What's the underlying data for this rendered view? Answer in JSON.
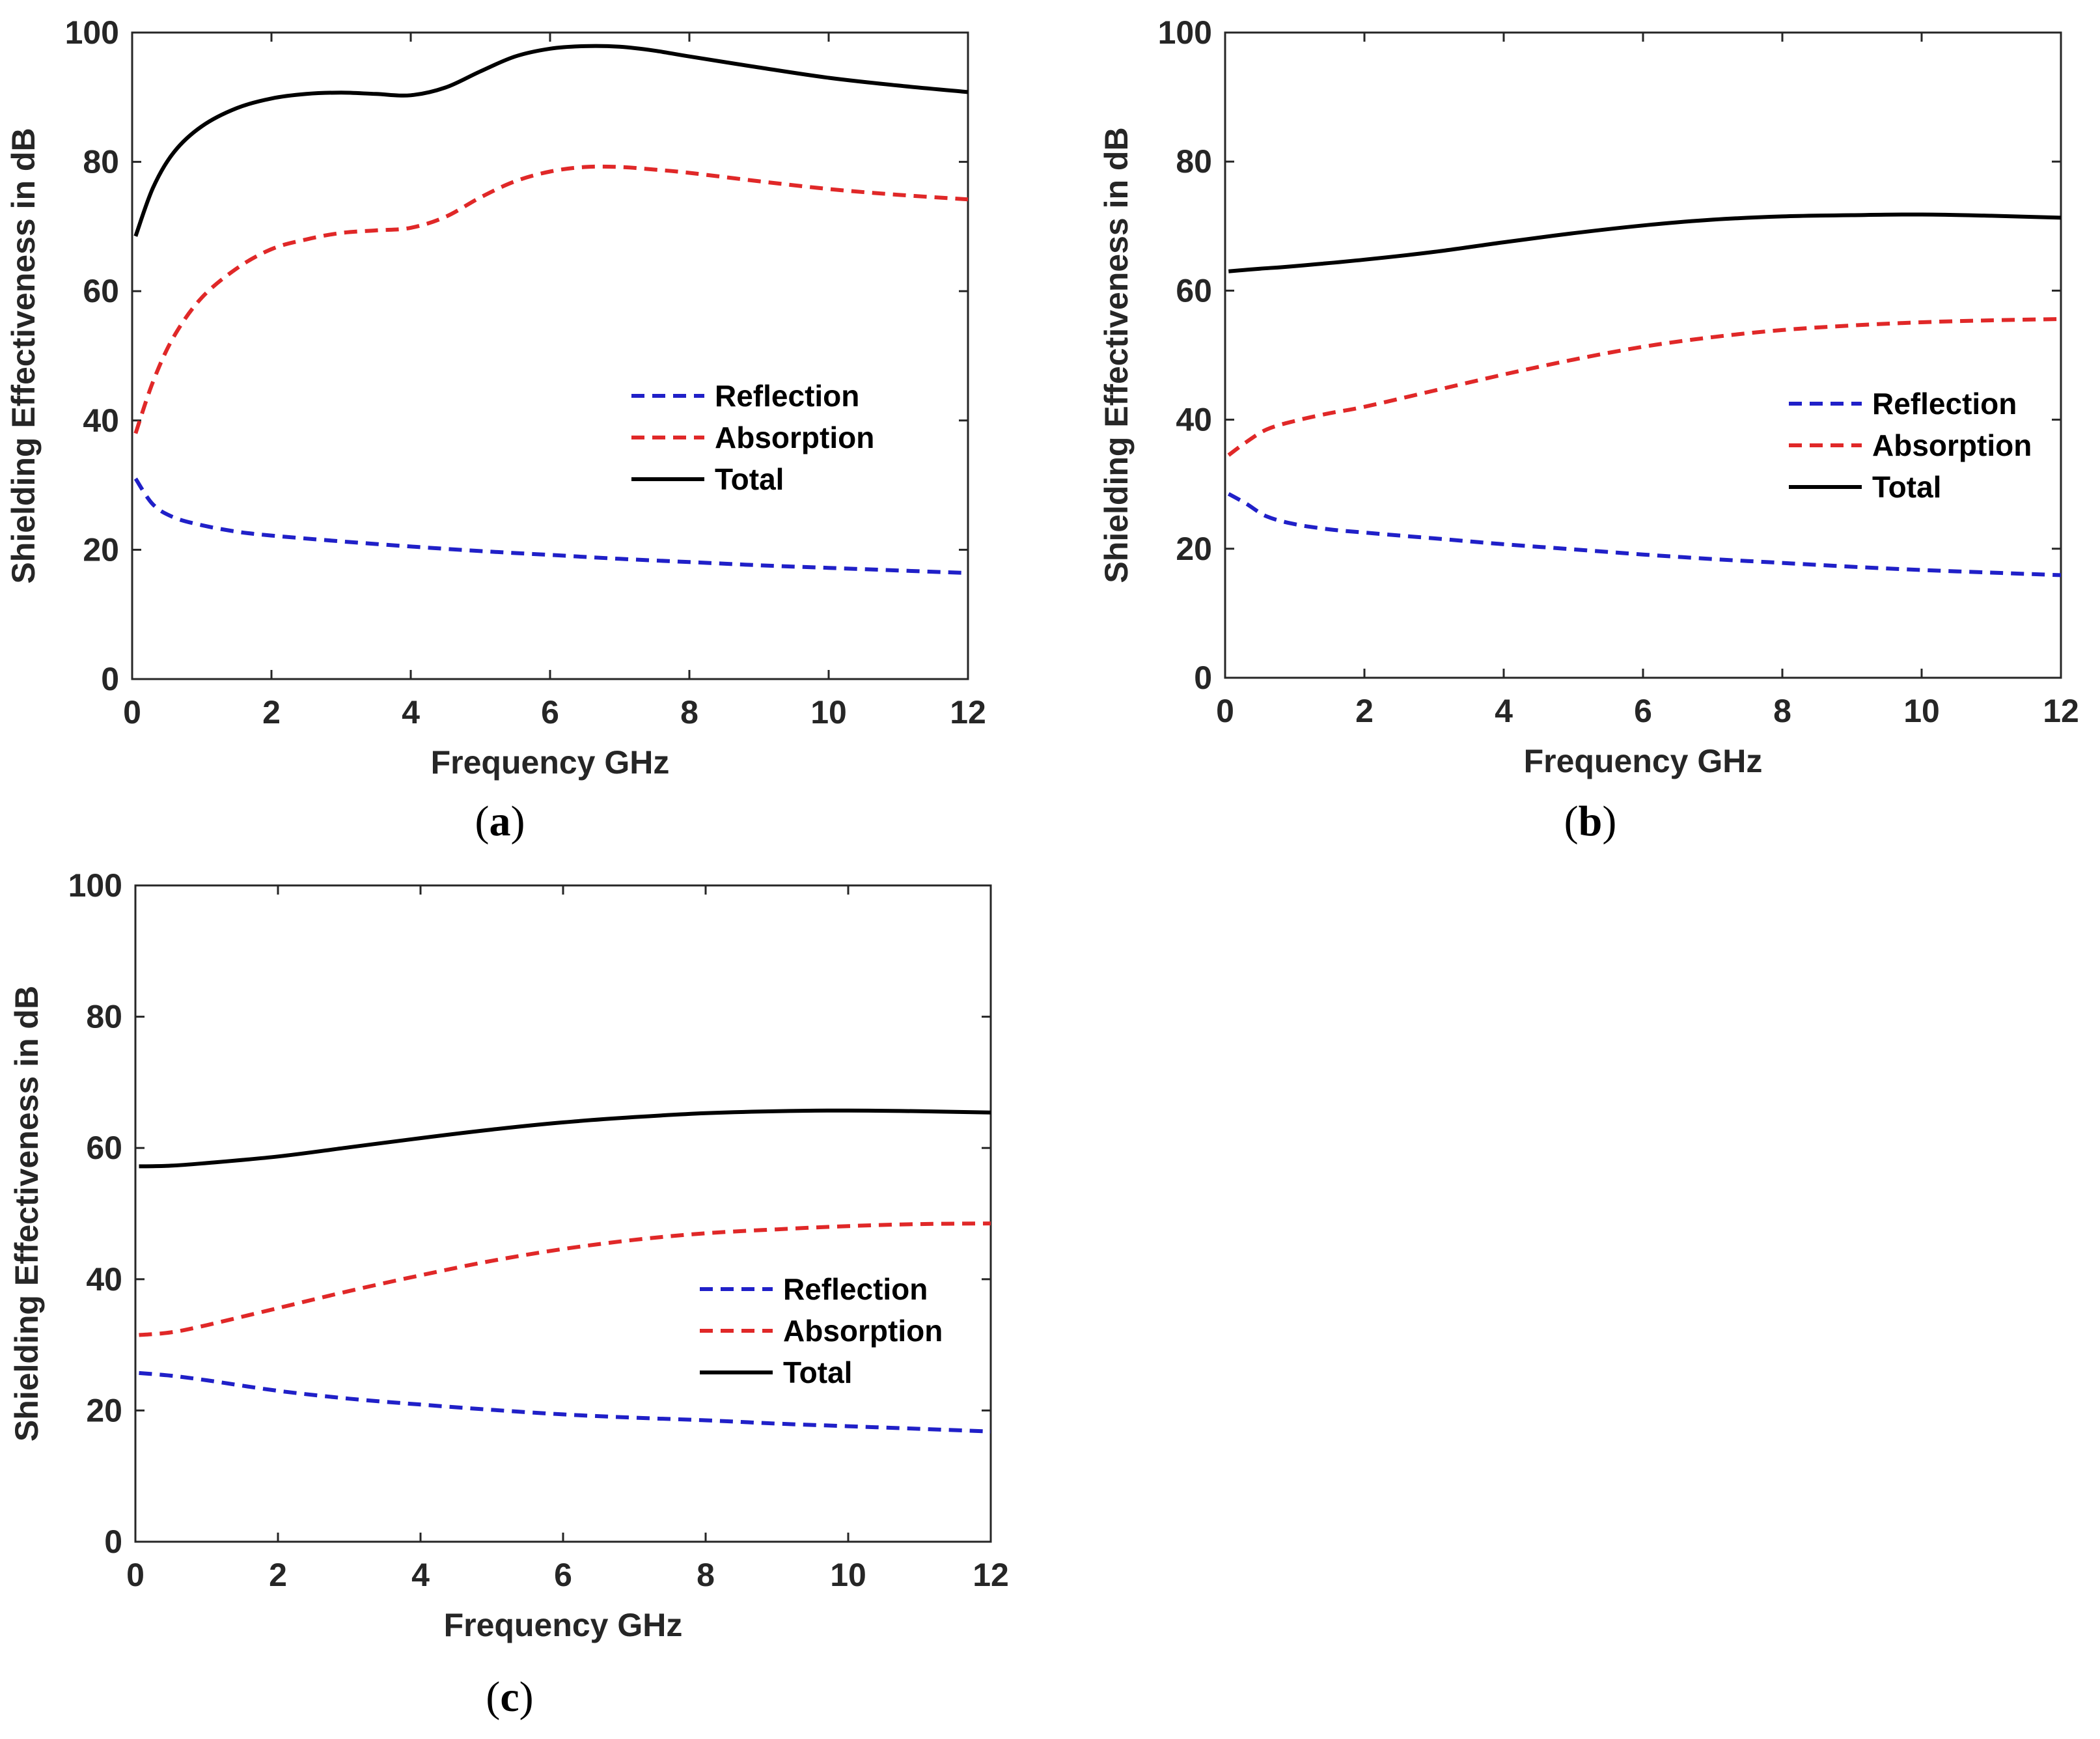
{
  "chart_data": [
    {
      "type": "line",
      "panel": "a",
      "caption": "(a)",
      "caption_letter": "a",
      "xlabel": "Frequency GHz",
      "ylabel": "Shielding Effectiveness in dB",
      "xlim": [
        0,
        12
      ],
      "ylim": [
        0,
        100
      ],
      "xticks": [
        0,
        2,
        4,
        6,
        8,
        10,
        12
      ],
      "yticks": [
        0,
        20,
        40,
        60,
        80,
        100
      ],
      "legend_position": "center-right",
      "series": [
        {
          "name": "Reflection",
          "color": "#2020c8",
          "style": "dashed",
          "x": [
            0.05,
            0.3,
            0.6,
            1,
            1.5,
            2,
            3,
            4,
            5,
            6,
            7,
            8,
            9,
            10,
            11,
            12
          ],
          "y": [
            31,
            27,
            25,
            23.8,
            22.8,
            22.2,
            21.3,
            20.5,
            19.8,
            19.2,
            18.6,
            18.1,
            17.6,
            17.2,
            16.8,
            16.4
          ]
        },
        {
          "name": "Absorption",
          "color": "#e02828",
          "style": "dashed",
          "x": [
            0.05,
            0.3,
            0.6,
            1,
            1.5,
            2,
            2.5,
            3,
            3.5,
            4,
            4.5,
            5,
            5.5,
            6,
            6.5,
            7,
            7.5,
            8,
            9,
            10,
            11,
            12
          ],
          "y": [
            38,
            46,
            53,
            59,
            63.5,
            66.5,
            68,
            69,
            69.4,
            69.8,
            71.5,
            74.5,
            77,
            78.5,
            79.2,
            79.2,
            78.8,
            78.3,
            77,
            75.8,
            74.9,
            74.2
          ]
        },
        {
          "name": "Total",
          "color": "#000000",
          "style": "solid",
          "x": [
            0.05,
            0.3,
            0.6,
            1,
            1.5,
            2,
            2.5,
            3,
            3.5,
            4,
            4.5,
            5,
            5.5,
            6,
            6.5,
            7,
            7.5,
            8,
            9,
            10,
            11,
            12
          ],
          "y": [
            68.5,
            76,
            81.5,
            85.5,
            88.3,
            89.8,
            90.5,
            90.7,
            90.5,
            90.3,
            91.5,
            94,
            96.3,
            97.5,
            97.9,
            97.8,
            97.2,
            96.3,
            94.6,
            93,
            91.8,
            90.8
          ]
        }
      ]
    },
    {
      "type": "line",
      "panel": "b",
      "caption": "(b)",
      "caption_letter": "b",
      "xlabel": "Frequency GHz",
      "ylabel": "Shielding Effectiveness in dB",
      "xlim": [
        0,
        12
      ],
      "ylim": [
        0,
        100
      ],
      "xticks": [
        0,
        2,
        4,
        6,
        8,
        10,
        12
      ],
      "yticks": [
        0,
        20,
        40,
        60,
        80,
        100
      ],
      "legend_position": "center-right",
      "series": [
        {
          "name": "Reflection",
          "color": "#2020c8",
          "style": "dashed",
          "x": [
            0.05,
            0.3,
            0.6,
            1,
            1.5,
            2,
            3,
            4,
            5,
            6,
            7,
            8,
            9,
            10,
            11,
            12
          ],
          "y": [
            28.5,
            27,
            25,
            23.8,
            23,
            22.5,
            21.6,
            20.7,
            19.9,
            19.1,
            18.4,
            17.8,
            17.2,
            16.7,
            16.3,
            15.9
          ]
        },
        {
          "name": "Absorption",
          "color": "#e02828",
          "style": "dashed",
          "x": [
            0.05,
            0.3,
            0.6,
            1,
            1.5,
            2,
            3,
            4,
            5,
            6,
            7,
            8,
            9,
            10,
            11,
            12
          ],
          "y": [
            34.5,
            36.5,
            38.5,
            39.8,
            41,
            42,
            44.5,
            47,
            49.3,
            51.3,
            52.8,
            53.9,
            54.6,
            55.1,
            55.4,
            55.6
          ]
        },
        {
          "name": "Total",
          "color": "#000000",
          "style": "solid",
          "x": [
            0.05,
            0.5,
            1,
            2,
            3,
            4,
            5,
            6,
            7,
            8,
            9,
            10,
            11,
            12
          ],
          "y": [
            63,
            63.4,
            63.8,
            64.8,
            66,
            67.5,
            68.9,
            70.1,
            71,
            71.5,
            71.7,
            71.8,
            71.6,
            71.3
          ]
        }
      ]
    },
    {
      "type": "line",
      "panel": "c",
      "caption": "(c)",
      "caption_letter": "c",
      "xlabel": "Frequency GHz",
      "ylabel": "Shielding Effectiveness in dB",
      "xlim": [
        0,
        12
      ],
      "ylim": [
        0,
        100
      ],
      "xticks": [
        0,
        2,
        4,
        6,
        8,
        10,
        12
      ],
      "yticks": [
        0,
        20,
        40,
        60,
        80,
        100
      ],
      "legend_position": "lower-right",
      "series": [
        {
          "name": "Reflection",
          "color": "#2020c8",
          "style": "dashed",
          "x": [
            0.05,
            0.5,
            1,
            2,
            3,
            4,
            5,
            6,
            7,
            8,
            9,
            10,
            11,
            12
          ],
          "y": [
            25.7,
            25.3,
            24.6,
            23,
            21.8,
            20.9,
            20.1,
            19.4,
            18.9,
            18.5,
            18,
            17.6,
            17.2,
            16.8
          ]
        },
        {
          "name": "Absorption",
          "color": "#e02828",
          "style": "dashed",
          "x": [
            0.05,
            0.5,
            1,
            2,
            3,
            4,
            5,
            6,
            7,
            8,
            9,
            10,
            11,
            12
          ],
          "y": [
            31.5,
            31.9,
            33,
            35.6,
            38.2,
            40.6,
            42.8,
            44.6,
            46,
            47,
            47.6,
            48.1,
            48.4,
            48.5
          ]
        },
        {
          "name": "Total",
          "color": "#000000",
          "style": "solid",
          "x": [
            0.05,
            0.5,
            1,
            2,
            3,
            4,
            5,
            6,
            7,
            8,
            9,
            10,
            11,
            12
          ],
          "y": [
            57.2,
            57.3,
            57.7,
            58.7,
            60.1,
            61.5,
            62.8,
            63.9,
            64.7,
            65.3,
            65.6,
            65.7,
            65.6,
            65.4
          ]
        }
      ]
    }
  ]
}
